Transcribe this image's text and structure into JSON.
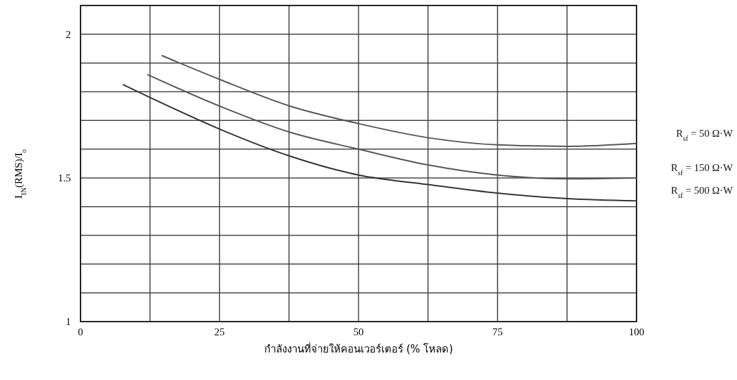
{
  "chart_data": {
    "type": "line",
    "xlabel": "กำลังงานที่จ่ายให้คอนเวอร์เตอร์ (% โหลด)",
    "ylabel": "I$_{IN}$(RMS)/I$_{o}$",
    "xlim": [
      0,
      100
    ],
    "xticks": [
      0,
      {
        "value": 12.5,
        "label": null
      },
      25,
      {
        "value": 37.5,
        "label": null
      },
      50,
      {
        "value": 62.5,
        "label": null
      },
      75,
      {
        "value": 87.5,
        "label": null
      },
      100
    ],
    "ylim": [
      1,
      2.1
    ],
    "yticks": [
      1,
      {
        "value": 1.1,
        "label": null
      },
      {
        "value": 1.2,
        "label": null
      },
      {
        "value": 1.3,
        "label": null
      },
      {
        "value": 1.4,
        "label": null
      },
      1.5,
      {
        "value": 1.6,
        "label": null
      },
      {
        "value": 1.7,
        "label": null
      },
      {
        "value": 1.8,
        "label": null
      },
      {
        "value": 1.9,
        "label": null
      },
      2,
      {
        "value": 2.1,
        "label": null
      }
    ],
    "grid": true,
    "marker": "none",
    "line_style": "solid",
    "series": [
      {
        "name": "R$_{sf}$ = 50 Ω·W",
        "color": "#555555",
        "x": [
          14.6,
          25,
          37.5,
          50,
          62.5,
          75,
          87.5,
          100
        ],
        "values": [
          1.926,
          1.843,
          1.751,
          1.689,
          1.64,
          1.615,
          1.61,
          1.62
        ]
      },
      {
        "name": "R$_{sf}$ = 150 Ω·W",
        "color": "#555555",
        "x": [
          12,
          25,
          37.5,
          50,
          62.5,
          75,
          87.5,
          100
        ],
        "values": [
          1.86,
          1.75,
          1.66,
          1.6,
          1.545,
          1.51,
          1.497,
          1.5
        ]
      },
      {
        "name": "R$_{sf}$ = 500 Ω·W",
        "color": "#333333",
        "x": [
          7.6,
          12.5,
          25,
          37.5,
          50,
          62.5,
          75,
          87.5,
          100
        ],
        "values": [
          1.825,
          1.78,
          1.67,
          1.577,
          1.51,
          1.477,
          1.447,
          1.428,
          1.42
        ]
      }
    ]
  }
}
